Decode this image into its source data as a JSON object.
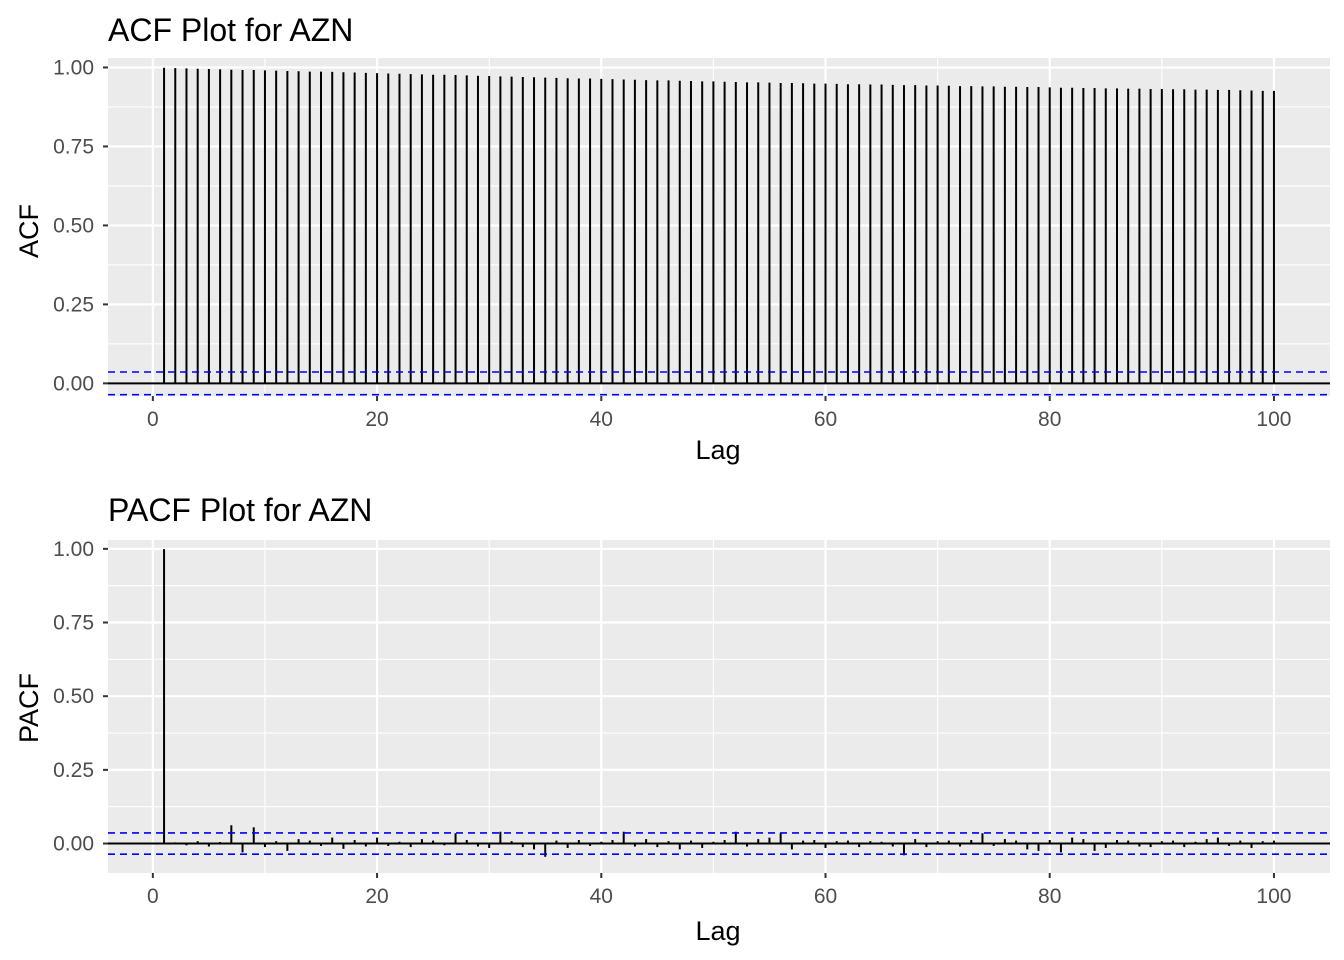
{
  "colors": {
    "panel_background": "#ebebeb",
    "grid": "#ffffff",
    "segment": "#000000",
    "confidence_line": "#0000ff",
    "tick_label": "#4d4d4d"
  },
  "chart_data": [
    {
      "type": "bar",
      "subtype": "stem",
      "title": "ACF Plot for AZN",
      "xlabel": "Lag",
      "ylabel": "ACF",
      "xlim": [
        -4,
        105
      ],
      "ylim": [
        -0.04,
        1.03
      ],
      "x_ticks": [
        0,
        20,
        40,
        60,
        80,
        100
      ],
      "x_tick_labels": [
        "0",
        "20",
        "40",
        "60",
        "80",
        "100"
      ],
      "y_ticks": [
        0,
        0.25,
        0.5,
        0.75,
        1.0
      ],
      "y_tick_labels": [
        "0.00",
        "0.25",
        "0.50",
        "0.75",
        "1.00"
      ],
      "grid": true,
      "confidence_bound": 0.036,
      "x": [
        1,
        2,
        3,
        4,
        5,
        6,
        7,
        8,
        9,
        10,
        11,
        12,
        13,
        14,
        15,
        16,
        17,
        18,
        19,
        20,
        21,
        22,
        23,
        24,
        25,
        26,
        27,
        28,
        29,
        30,
        31,
        32,
        33,
        34,
        35,
        36,
        37,
        38,
        39,
        40,
        41,
        42,
        43,
        44,
        45,
        46,
        47,
        48,
        49,
        50,
        51,
        52,
        53,
        54,
        55,
        56,
        57,
        58,
        59,
        60,
        61,
        62,
        63,
        64,
        65,
        66,
        67,
        68,
        69,
        70,
        71,
        72,
        73,
        74,
        75,
        76,
        77,
        78,
        79,
        80,
        81,
        82,
        83,
        84,
        85,
        86,
        87,
        88,
        89,
        90,
        91,
        92,
        93,
        94,
        95,
        96,
        97,
        98,
        99,
        100
      ],
      "values": [
        0.999,
        0.998,
        0.997,
        0.996,
        0.995,
        0.994,
        0.993,
        0.992,
        0.992,
        0.991,
        0.99,
        0.989,
        0.988,
        0.987,
        0.987,
        0.986,
        0.985,
        0.984,
        0.983,
        0.982,
        0.981,
        0.98,
        0.979,
        0.978,
        0.977,
        0.977,
        0.976,
        0.975,
        0.974,
        0.973,
        0.972,
        0.971,
        0.97,
        0.969,
        0.968,
        0.967,
        0.966,
        0.965,
        0.965,
        0.964,
        0.963,
        0.962,
        0.961,
        0.96,
        0.959,
        0.959,
        0.958,
        0.957,
        0.956,
        0.956,
        0.955,
        0.954,
        0.953,
        0.953,
        0.952,
        0.951,
        0.951,
        0.95,
        0.949,
        0.949,
        0.948,
        0.947,
        0.947,
        0.946,
        0.946,
        0.945,
        0.944,
        0.944,
        0.943,
        0.943,
        0.942,
        0.941,
        0.941,
        0.94,
        0.94,
        0.939,
        0.939,
        0.938,
        0.938,
        0.937,
        0.936,
        0.936,
        0.935,
        0.935,
        0.934,
        0.934,
        0.933,
        0.933,
        0.932,
        0.932,
        0.931,
        0.931,
        0.93,
        0.93,
        0.929,
        0.929,
        0.928,
        0.927,
        0.926,
        0.926
      ]
    },
    {
      "type": "bar",
      "subtype": "stem",
      "title": "PACF Plot for AZN",
      "xlabel": "Lag",
      "ylabel": "PACF",
      "xlim": [
        -4,
        105
      ],
      "ylim": [
        -0.1,
        1.03
      ],
      "x_ticks": [
        0,
        20,
        40,
        60,
        80,
        100
      ],
      "x_tick_labels": [
        "0",
        "20",
        "40",
        "60",
        "80",
        "100"
      ],
      "y_ticks": [
        0,
        0.25,
        0.5,
        0.75,
        1.0
      ],
      "y_tick_labels": [
        "0.00",
        "0.25",
        "0.50",
        "0.75",
        "1.00"
      ],
      "grid": true,
      "confidence_bound": 0.036,
      "x": [
        1,
        2,
        3,
        4,
        5,
        6,
        7,
        8,
        9,
        10,
        11,
        12,
        13,
        14,
        15,
        16,
        17,
        18,
        19,
        20,
        21,
        22,
        23,
        24,
        25,
        26,
        27,
        28,
        29,
        30,
        31,
        32,
        33,
        34,
        35,
        36,
        37,
        38,
        39,
        40,
        41,
        42,
        43,
        44,
        45,
        46,
        47,
        48,
        49,
        50,
        51,
        52,
        53,
        54,
        55,
        56,
        57,
        58,
        59,
        60,
        61,
        62,
        63,
        64,
        65,
        66,
        67,
        68,
        69,
        70,
        71,
        72,
        73,
        74,
        75,
        76,
        77,
        78,
        79,
        80,
        81,
        82,
        83,
        84,
        85,
        86,
        87,
        88,
        89,
        90,
        91,
        92,
        93,
        94,
        95,
        96,
        97,
        98,
        99,
        100
      ],
      "values": [
        0.999,
        0.004,
        -0.006,
        0.008,
        -0.01,
        0.005,
        0.062,
        -0.03,
        0.055,
        -0.012,
        0.008,
        -0.025,
        0.015,
        0.01,
        -0.008,
        0.02,
        -0.018,
        0.012,
        -0.01,
        0.02,
        -0.008,
        0.006,
        -0.012,
        0.015,
        0.01,
        -0.006,
        0.035,
        0.012,
        -0.01,
        -0.015,
        0.04,
        0.008,
        -0.012,
        -0.02,
        -0.045,
        0.01,
        -0.015,
        0.012,
        -0.008,
        0.006,
        0.012,
        0.04,
        -0.01,
        0.015,
        -0.012,
        0.008,
        -0.02,
        0.01,
        -0.015,
        0.006,
        0.012,
        0.04,
        -0.01,
        0.015,
        0.02,
        0.035,
        -0.02,
        0.01,
        0.012,
        -0.015,
        0.008,
        0.01,
        -0.012,
        0.008,
        0.006,
        -0.01,
        -0.04,
        0.015,
        -0.012,
        0.008,
        0.01,
        -0.01,
        0.012,
        0.035,
        -0.008,
        0.015,
        0.01,
        -0.02,
        -0.025,
        0.012,
        -0.03,
        0.02,
        0.015,
        -0.025,
        -0.015,
        0.012,
        0.01,
        -0.01,
        -0.012,
        0.008,
        0.01,
        -0.012,
        0.006,
        0.015,
        0.02,
        -0.008,
        0.01,
        -0.015,
        0.008,
        0.01
      ]
    }
  ]
}
